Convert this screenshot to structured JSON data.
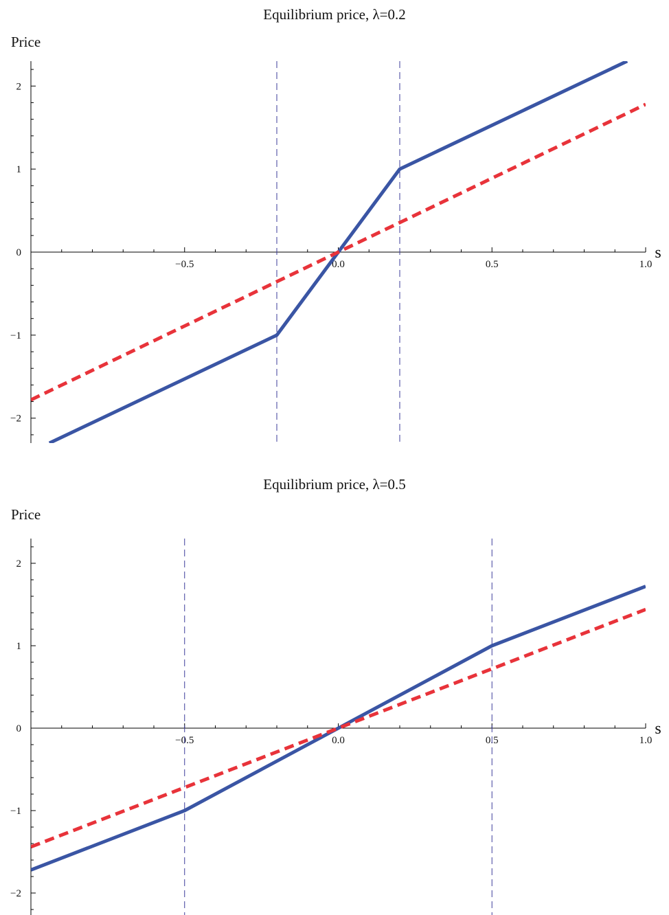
{
  "colors": {
    "solid_series": "#3a55a4",
    "dashed_series": "#e8333a",
    "guide_lines": "#3b3b9a"
  },
  "chart_data": [
    {
      "type": "line",
      "title": "Equilibrium price, λ=0.2",
      "xlabel": "s",
      "ylabel": "Price",
      "xlim": [
        -1.0,
        1.0
      ],
      "ylim": [
        -2.3,
        2.3
      ],
      "xticks": [
        -0.5,
        0.0,
        0.5,
        1.0
      ],
      "xtick_labels": [
        "−0.5",
        "0.0",
        "0.5",
        "1.0"
      ],
      "yticks": [
        -2,
        -1,
        0,
        1,
        2
      ],
      "ytick_labels": [
        "−2",
        "−1",
        "0",
        "1",
        "2"
      ],
      "vertical_guides": [
        -0.2,
        0.2
      ],
      "grid": false,
      "series": [
        {
          "style": "solid",
          "x": [
            -0.94,
            -0.2,
            0.2,
            0.94
          ],
          "y": [
            -2.3,
            -1.0,
            1.0,
            2.3
          ]
        },
        {
          "style": "dashed",
          "x": [
            -1.0,
            1.0
          ],
          "y": [
            -1.78,
            1.78
          ]
        }
      ]
    },
    {
      "type": "line",
      "title": "Equilibrium price, λ=0.5",
      "xlabel": "s",
      "ylabel": "Price",
      "xlim": [
        -1.0,
        1.0
      ],
      "ylim": [
        -2.3,
        2.3
      ],
      "xticks": [
        -0.5,
        0.0,
        0.5,
        1.0
      ],
      "xtick_labels": [
        "−0.5",
        "0.0",
        "0.5",
        "1.0"
      ],
      "yticks": [
        -2,
        -1,
        0,
        1,
        2
      ],
      "ytick_labels": [
        "−2",
        "−1",
        "0",
        "1",
        "2"
      ],
      "vertical_guides": [
        -0.5,
        0.5
      ],
      "grid": false,
      "series": [
        {
          "style": "solid",
          "x": [
            -1.0,
            -0.5,
            0.5,
            1.0
          ],
          "y": [
            -1.72,
            -1.0,
            1.0,
            1.72
          ]
        },
        {
          "style": "dashed",
          "x": [
            -1.0,
            1.0
          ],
          "y": [
            -1.44,
            1.44
          ]
        }
      ]
    }
  ]
}
